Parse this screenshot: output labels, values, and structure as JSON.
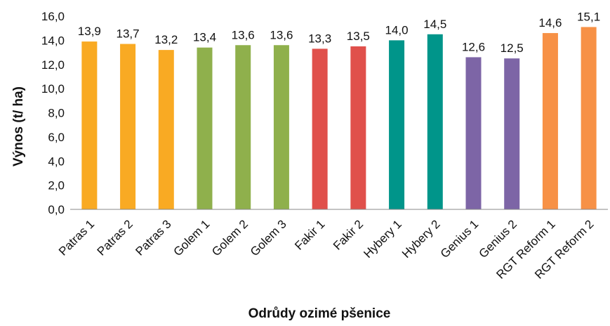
{
  "chart_data": {
    "type": "bar",
    "xlabel": "Odrůdy ozimé pšenice",
    "ylabel": "Výnos (t/ ha)",
    "ylim": [
      0,
      16
    ],
    "ytick_step": 2,
    "ytick_labels": [
      "0,0",
      "2,0",
      "4,0",
      "6,0",
      "8,0",
      "10,0",
      "12,0",
      "14,0",
      "16,0"
    ],
    "grid": false,
    "categories": [
      "Patras 1",
      "Patras 2",
      "Patras 3",
      "Golem 1",
      "Golem 2",
      "Golem 3",
      "Fakir 1",
      "Fakir 2",
      "Hybery 1",
      "Hybery 2",
      "Genius 1",
      "Genius 2",
      "RGT Reform 1",
      "RGT Reform 2"
    ],
    "values": [
      13.9,
      13.7,
      13.2,
      13.4,
      13.6,
      13.6,
      13.3,
      13.5,
      14.0,
      14.5,
      12.6,
      12.5,
      14.6,
      15.1
    ],
    "value_labels": [
      "13,9",
      "13,7",
      "13,2",
      "13,4",
      "13,6",
      "13,6",
      "13,3",
      "13,5",
      "14,0",
      "14,5",
      "12,6",
      "12,5",
      "14,6",
      "15,1"
    ],
    "bar_colors": [
      "#F9AA23",
      "#F9AA23",
      "#F9AA23",
      "#8FB04C",
      "#8FB04C",
      "#8FB04C",
      "#E0504B",
      "#E0504B",
      "#00958A",
      "#00958A",
      "#7D65A6",
      "#7D65A6",
      "#F79146",
      "#F79146"
    ]
  }
}
